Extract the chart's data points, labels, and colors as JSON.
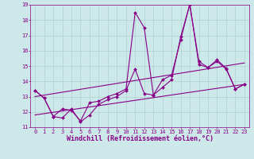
{
  "xlabel": "Windchill (Refroidissement éolien,°C)",
  "xlim": [
    -0.5,
    23.5
  ],
  "ylim": [
    11,
    19
  ],
  "xticks": [
    0,
    1,
    2,
    3,
    4,
    5,
    6,
    7,
    8,
    9,
    10,
    11,
    12,
    13,
    14,
    15,
    16,
    17,
    18,
    19,
    20,
    21,
    22,
    23
  ],
  "yticks": [
    11,
    12,
    13,
    14,
    15,
    16,
    17,
    18,
    19
  ],
  "bg_color": "#cce8e8",
  "grid_color": "#b0d0d0",
  "line_color": "#880088",
  "series1_x": [
    0,
    1,
    2,
    3,
    4,
    5,
    6,
    7,
    8,
    9,
    10,
    11,
    12,
    13,
    14,
    15,
    16,
    17,
    18,
    19,
    20,
    21,
    22,
    23
  ],
  "series1_y": [
    13.4,
    12.9,
    11.7,
    11.6,
    12.2,
    11.35,
    11.8,
    12.5,
    12.8,
    13.0,
    13.4,
    14.8,
    13.2,
    13.1,
    13.6,
    14.1,
    16.9,
    19.0,
    15.3,
    14.9,
    15.4,
    14.85,
    13.5,
    13.8
  ],
  "series2_x": [
    0,
    1,
    2,
    3,
    4,
    5,
    6,
    7,
    8,
    9,
    10,
    11,
    12,
    13,
    14,
    15,
    16,
    17,
    18,
    19,
    20,
    21,
    22,
    23
  ],
  "series2_y": [
    13.4,
    12.9,
    11.7,
    12.2,
    12.1,
    11.4,
    12.6,
    12.7,
    13.0,
    13.2,
    13.5,
    18.5,
    17.5,
    13.1,
    14.1,
    14.4,
    16.7,
    19.05,
    15.1,
    14.9,
    15.3,
    14.8,
    13.5,
    13.8
  ],
  "trend1_x": [
    0,
    23
  ],
  "trend1_y": [
    13.0,
    15.2
  ],
  "trend2_x": [
    0,
    23
  ],
  "trend2_y": [
    11.8,
    13.8
  ],
  "marker": "D",
  "markersize": 2.0,
  "linewidth": 0.8,
  "tick_fontsize": 5.0,
  "label_fontsize": 6.0
}
